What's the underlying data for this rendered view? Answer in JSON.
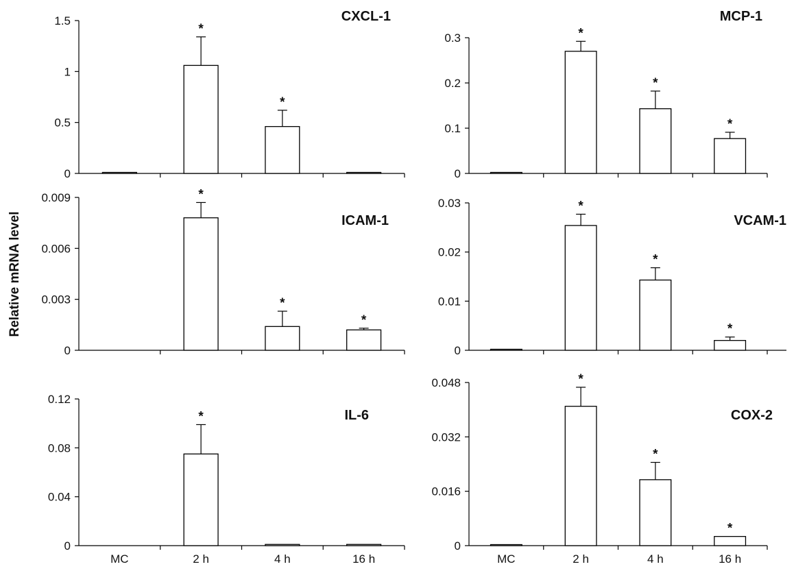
{
  "figure": {
    "ylabel": "Relative mRNA level",
    "categories": [
      "MC",
      "2 h",
      "4 h",
      "16 h"
    ]
  },
  "chart_data": [
    {
      "type": "bar",
      "title": "CXCL-1",
      "categories": [
        "MC",
        "2 h",
        "4 h",
        "16 h"
      ],
      "values": [
        0.005,
        1.06,
        0.46,
        0.01
      ],
      "errors": [
        0,
        0.28,
        0.16,
        0
      ],
      "significant": [
        false,
        true,
        true,
        false
      ],
      "ylim": [
        0,
        1.5
      ],
      "yticks": [
        "0",
        "0.5",
        "1",
        "1.5"
      ],
      "xtick_labels": false
    },
    {
      "type": "bar",
      "title": "MCP-1",
      "categories": [
        "MC",
        "2 h",
        "4 h",
        "16 h"
      ],
      "values": [
        0.001,
        0.27,
        0.143,
        0.077
      ],
      "errors": [
        0,
        0.022,
        0.039,
        0.014
      ],
      "significant": [
        false,
        true,
        true,
        true
      ],
      "ylim": [
        0,
        0.3
      ],
      "yticks": [
        "0",
        "0.1",
        "0.2",
        "0.3"
      ],
      "xtick_labels": false
    },
    {
      "type": "bar",
      "title": "ICAM-1",
      "categories": [
        "MC",
        "2 h",
        "4 h",
        "16 h"
      ],
      "values": [
        0,
        0.0078,
        0.0014,
        0.0012
      ],
      "errors": [
        0,
        0.0009,
        0.0009,
        0.0001
      ],
      "significant": [
        false,
        true,
        true,
        true
      ],
      "ylim": [
        0,
        0.009
      ],
      "yticks": [
        "0",
        "0.003",
        "0.006",
        "0.009"
      ],
      "xtick_labels": false
    },
    {
      "type": "bar",
      "title": "VCAM-1",
      "categories": [
        "MC",
        "2 h",
        "4 h",
        "16 h"
      ],
      "values": [
        0.0001,
        0.0254,
        0.0143,
        0.002
      ],
      "errors": [
        0,
        0.0023,
        0.0025,
        0.0007
      ],
      "significant": [
        false,
        true,
        true,
        true
      ],
      "ylim": [
        0,
        0.03
      ],
      "yticks": [
        "0",
        "0.01",
        "0.02",
        "0.03"
      ],
      "xtick_labels": false
    },
    {
      "type": "bar",
      "title": "IL-6",
      "categories": [
        "MC",
        "2 h",
        "4 h",
        "16 h"
      ],
      "values": [
        0,
        0.075,
        0.001,
        0.001
      ],
      "errors": [
        0,
        0.024,
        0,
        0
      ],
      "significant": [
        false,
        true,
        false,
        false
      ],
      "ylim": [
        0,
        0.12
      ],
      "yticks": [
        "0",
        "0.04",
        "0.08",
        "0.12"
      ],
      "xtick_labels": true
    },
    {
      "type": "bar",
      "title": "COX-2",
      "categories": [
        "MC",
        "2 h",
        "4 h",
        "16 h"
      ],
      "values": [
        0.0002,
        0.041,
        0.0194,
        0.0027
      ],
      "errors": [
        0,
        0.0056,
        0.0051,
        0
      ],
      "significant": [
        false,
        true,
        true,
        true
      ],
      "ylim": [
        0,
        0.048
      ],
      "yticks": [
        "0",
        "0.016",
        "0.032",
        "0.048"
      ],
      "xtick_labels": true
    }
  ]
}
